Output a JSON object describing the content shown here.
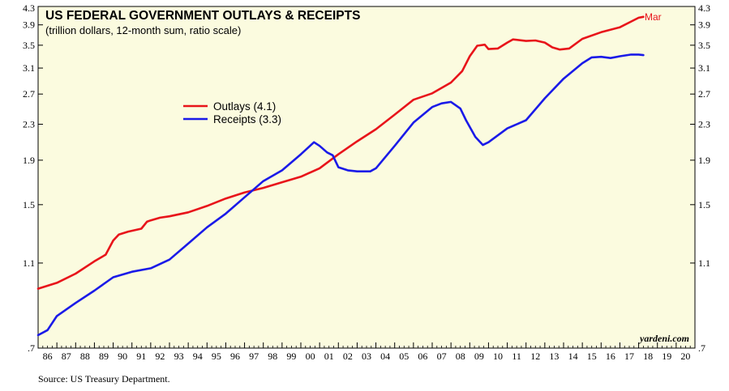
{
  "chart_data": {
    "type": "line",
    "title": "US FEDERAL GOVERNMENT OUTLAYS & RECEIPTS",
    "subtitle": "(trillion dollars, 12-month sum, ratio scale)",
    "y_scale": "log",
    "ylim": [
      0.7,
      4.3
    ],
    "y_ticks": [
      {
        "value": 4.3,
        "label": "4.3"
      },
      {
        "value": 3.9,
        "label": "3.9"
      },
      {
        "value": 3.5,
        "label": "3.5"
      },
      {
        "value": 3.1,
        "label": "3.1"
      },
      {
        "value": 2.7,
        "label": "2.7"
      },
      {
        "value": 2.3,
        "label": "2.3"
      },
      {
        "value": 1.9,
        "label": "1.9"
      },
      {
        "value": 1.5,
        "label": "1.5"
      },
      {
        "value": 1.1,
        "label": "1.1"
      },
      {
        "value": 0.7,
        "label": ".7"
      }
    ],
    "xlim": [
      1986,
      2021
    ],
    "x_tick_labels": [
      "86",
      "87",
      "88",
      "89",
      "90",
      "91",
      "92",
      "93",
      "94",
      "95",
      "96",
      "97",
      "98",
      "99",
      "00",
      "01",
      "02",
      "03",
      "04",
      "05",
      "06",
      "07",
      "08",
      "09",
      "10",
      "11",
      "12",
      "13",
      "14",
      "15",
      "16",
      "17",
      "18",
      "19",
      "20"
    ],
    "grid": false,
    "legend_placement": "center-left",
    "series": [
      {
        "name": "Outlays (4.1)",
        "color": "#e8141a",
        "end_label": "Mar",
        "points": [
          [
            1986.0,
            0.96
          ],
          [
            1987.0,
            0.99
          ],
          [
            1988.0,
            1.04
          ],
          [
            1989.0,
            1.11
          ],
          [
            1989.6,
            1.15
          ],
          [
            1990.0,
            1.24
          ],
          [
            1990.3,
            1.28
          ],
          [
            1990.8,
            1.3
          ],
          [
            1991.5,
            1.32
          ],
          [
            1991.8,
            1.37
          ],
          [
            1992.0,
            1.38
          ],
          [
            1992.5,
            1.4
          ],
          [
            1993.0,
            1.41
          ],
          [
            1994.0,
            1.44
          ],
          [
            1995.0,
            1.49
          ],
          [
            1996.0,
            1.55
          ],
          [
            1997.0,
            1.6
          ],
          [
            1998.0,
            1.64
          ],
          [
            1999.0,
            1.69
          ],
          [
            2000.0,
            1.74
          ],
          [
            2001.0,
            1.82
          ],
          [
            2002.0,
            1.96
          ],
          [
            2003.0,
            2.1
          ],
          [
            2004.0,
            2.24
          ],
          [
            2005.0,
            2.42
          ],
          [
            2006.0,
            2.62
          ],
          [
            2007.0,
            2.71
          ],
          [
            2008.0,
            2.87
          ],
          [
            2008.6,
            3.05
          ],
          [
            2009.0,
            3.3
          ],
          [
            2009.4,
            3.49
          ],
          [
            2009.8,
            3.51
          ],
          [
            2010.0,
            3.43
          ],
          [
            2010.5,
            3.44
          ],
          [
            2011.0,
            3.55
          ],
          [
            2011.3,
            3.61
          ],
          [
            2012.0,
            3.58
          ],
          [
            2012.5,
            3.59
          ],
          [
            2013.0,
            3.55
          ],
          [
            2013.4,
            3.46
          ],
          [
            2013.8,
            3.42
          ],
          [
            2014.3,
            3.44
          ],
          [
            2015.0,
            3.62
          ],
          [
            2016.0,
            3.75
          ],
          [
            2017.0,
            3.85
          ],
          [
            2017.6,
            3.97
          ],
          [
            2018.0,
            4.05
          ],
          [
            2018.25,
            4.07
          ]
        ]
      },
      {
        "name": "Receipts (3.3)",
        "color": "#1a1ae8",
        "points": [
          [
            1986.0,
            0.75
          ],
          [
            1986.5,
            0.77
          ],
          [
            1987.0,
            0.83
          ],
          [
            1988.0,
            0.89
          ],
          [
            1989.0,
            0.95
          ],
          [
            1990.0,
            1.02
          ],
          [
            1991.0,
            1.05
          ],
          [
            1992.0,
            1.07
          ],
          [
            1993.0,
            1.12
          ],
          [
            1994.0,
            1.22
          ],
          [
            1995.0,
            1.33
          ],
          [
            1996.0,
            1.43
          ],
          [
            1997.0,
            1.56
          ],
          [
            1998.0,
            1.7
          ],
          [
            1999.0,
            1.8
          ],
          [
            2000.0,
            1.96
          ],
          [
            2000.7,
            2.09
          ],
          [
            2001.0,
            2.05
          ],
          [
            2001.4,
            1.98
          ],
          [
            2001.7,
            1.95
          ],
          [
            2002.0,
            1.83
          ],
          [
            2002.5,
            1.8
          ],
          [
            2003.0,
            1.79
          ],
          [
            2003.7,
            1.79
          ],
          [
            2004.0,
            1.82
          ],
          [
            2005.0,
            2.05
          ],
          [
            2006.0,
            2.32
          ],
          [
            2007.0,
            2.52
          ],
          [
            2007.5,
            2.57
          ],
          [
            2008.0,
            2.59
          ],
          [
            2008.5,
            2.5
          ],
          [
            2008.8,
            2.35
          ],
          [
            2009.3,
            2.15
          ],
          [
            2009.7,
            2.06
          ],
          [
            2010.0,
            2.09
          ],
          [
            2011.0,
            2.25
          ],
          [
            2012.0,
            2.35
          ],
          [
            2013.0,
            2.64
          ],
          [
            2014.0,
            2.93
          ],
          [
            2015.0,
            3.18
          ],
          [
            2015.5,
            3.28
          ],
          [
            2016.0,
            3.29
          ],
          [
            2016.5,
            3.27
          ],
          [
            2017.0,
            3.3
          ],
          [
            2017.6,
            3.33
          ],
          [
            2018.0,
            3.33
          ],
          [
            2018.25,
            3.32
          ]
        ]
      }
    ]
  },
  "source": "Source: US Treasury Department.",
  "credit": "yardeni.com",
  "colors": {
    "plot_background": "#fbfbdf",
    "frame": "#000000"
  }
}
